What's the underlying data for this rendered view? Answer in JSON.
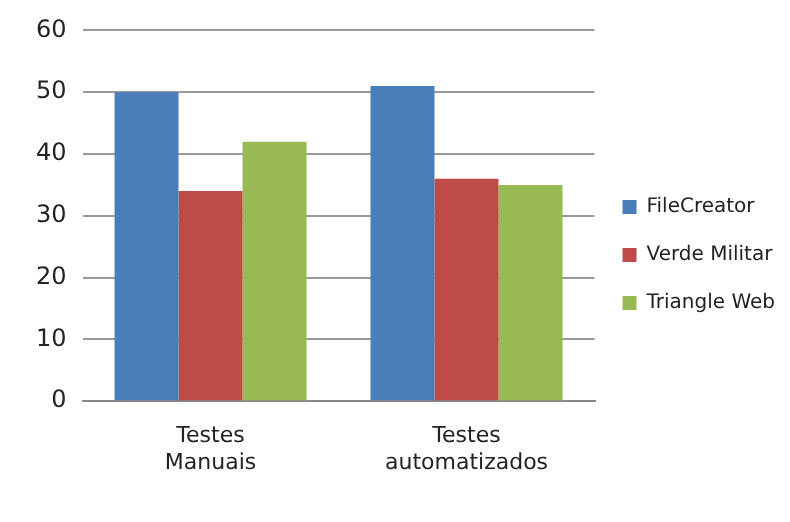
{
  "chart_data": {
    "type": "bar",
    "categories": [
      "Testes Manuais",
      "Testes automatizados"
    ],
    "series": [
      {
        "name": "FileCreator",
        "color": "#4a7ebb",
        "values": [
          50,
          51
        ]
      },
      {
        "name": "Verde Militar",
        "color": "#be4b48",
        "values": [
          34,
          36
        ]
      },
      {
        "name": "Triangle Web",
        "color": "#98b954",
        "values": [
          42,
          35
        ]
      }
    ],
    "ylim": [
      0,
      60
    ],
    "yticks": [
      0,
      10,
      20,
      30,
      40,
      50,
      60
    ],
    "grid": "y",
    "legend": "right"
  }
}
